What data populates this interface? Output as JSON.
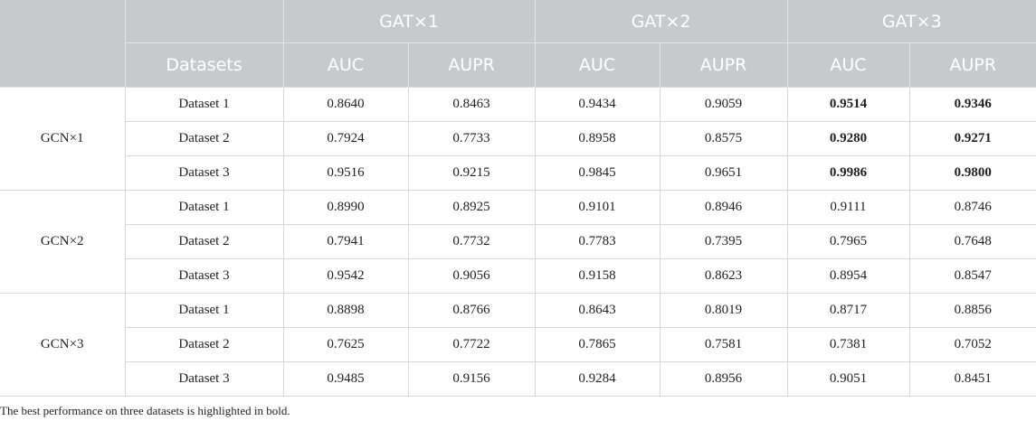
{
  "header": {
    "groups": [
      "GAT×1",
      "GAT×2",
      "GAT×3"
    ],
    "datasets_label": "Datasets",
    "metrics": [
      "AUC",
      "AUPR",
      "AUC",
      "AUPR",
      "AUC",
      "AUPR"
    ]
  },
  "row_groups": [
    {
      "label": "GCN×1",
      "rows": [
        {
          "dataset": "Dataset 1",
          "values": [
            "0.8640",
            "0.8463",
            "0.9434",
            "0.9059",
            "0.9514",
            "0.9346"
          ],
          "bold": [
            false,
            false,
            false,
            false,
            true,
            true
          ]
        },
        {
          "dataset": "Dataset 2",
          "values": [
            "0.7924",
            "0.7733",
            "0.8958",
            "0.8575",
            "0.9280",
            "0.9271"
          ],
          "bold": [
            false,
            false,
            false,
            false,
            true,
            true
          ]
        },
        {
          "dataset": "Dataset 3",
          "values": [
            "0.9516",
            "0.9215",
            "0.9845",
            "0.9651",
            "0.9986",
            "0.9800"
          ],
          "bold": [
            false,
            false,
            false,
            false,
            true,
            true
          ]
        }
      ]
    },
    {
      "label": "GCN×2",
      "rows": [
        {
          "dataset": "Dataset 1",
          "values": [
            "0.8990",
            "0.8925",
            "0.9101",
            "0.8946",
            "0.9111",
            "0.8746"
          ],
          "bold": [
            false,
            false,
            false,
            false,
            false,
            false
          ]
        },
        {
          "dataset": "Dataset 2",
          "values": [
            "0.7941",
            "0.7732",
            "0.7783",
            "0.7395",
            "0.7965",
            "0.7648"
          ],
          "bold": [
            false,
            false,
            false,
            false,
            false,
            false
          ]
        },
        {
          "dataset": "Dataset 3",
          "values": [
            "0.9542",
            "0.9056",
            "0.9158",
            "0.8623",
            "0.8954",
            "0.8547"
          ],
          "bold": [
            false,
            false,
            false,
            false,
            false,
            false
          ]
        }
      ]
    },
    {
      "label": "GCN×3",
      "rows": [
        {
          "dataset": "Dataset 1",
          "values": [
            "0.8898",
            "0.8766",
            "0.8643",
            "0.8019",
            "0.8717",
            "0.8856"
          ],
          "bold": [
            false,
            false,
            false,
            false,
            false,
            false
          ]
        },
        {
          "dataset": "Dataset 2",
          "values": [
            "0.7625",
            "0.7722",
            "0.7865",
            "0.7581",
            "0.7381",
            "0.7052"
          ],
          "bold": [
            false,
            false,
            false,
            false,
            false,
            false
          ]
        },
        {
          "dataset": "Dataset 3",
          "values": [
            "0.9485",
            "0.9156",
            "0.9284",
            "0.8956",
            "0.9051",
            "0.8451"
          ],
          "bold": [
            false,
            false,
            false,
            false,
            false,
            false
          ]
        }
      ]
    }
  ],
  "footnote": "The best performance on three datasets is highlighted in bold.",
  "colors": {
    "header_bg": "#c8c9cb",
    "header_text": "#ffffff",
    "body_text": "#231f20",
    "grid": "#d7d8d9"
  }
}
